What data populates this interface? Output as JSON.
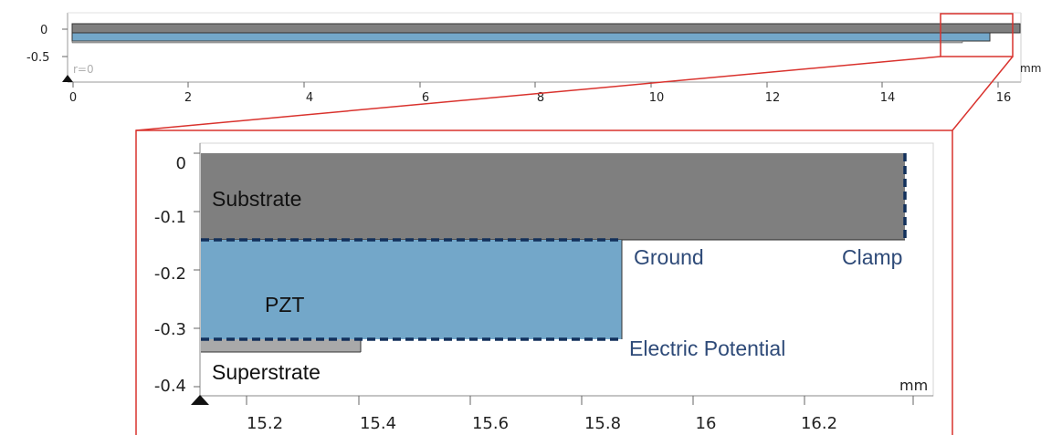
{
  "overview": {
    "y_ticks": [
      "0",
      "-0.5"
    ],
    "x_ticks": [
      "0",
      "2",
      "4",
      "6",
      "8",
      "10",
      "12",
      "14",
      "16"
    ],
    "axis_marker": "r=0",
    "unit": "mm"
  },
  "detail": {
    "y_ticks": [
      "0",
      "-0.1",
      "-0.2",
      "-0.3",
      "-0.4"
    ],
    "x_ticks": [
      "15.2",
      "15.4",
      "15.6",
      "15.8",
      "16",
      "16.2"
    ],
    "unit": "mm"
  },
  "layers": {
    "substrate": "Substrate",
    "pzt": "PZT",
    "superstrate": "Superstrate"
  },
  "boundaries": {
    "ground": "Ground",
    "clamp": "Clamp",
    "electric_potential": "Electric Potential"
  },
  "colors": {
    "substrate": "#7f7f7f",
    "pzt": "#73a7c9",
    "superstrate": "#a9a9a9",
    "boundary_dash": "#12305b",
    "callout_text": "#2e4a78",
    "zoom_box": "#d9322d"
  }
}
